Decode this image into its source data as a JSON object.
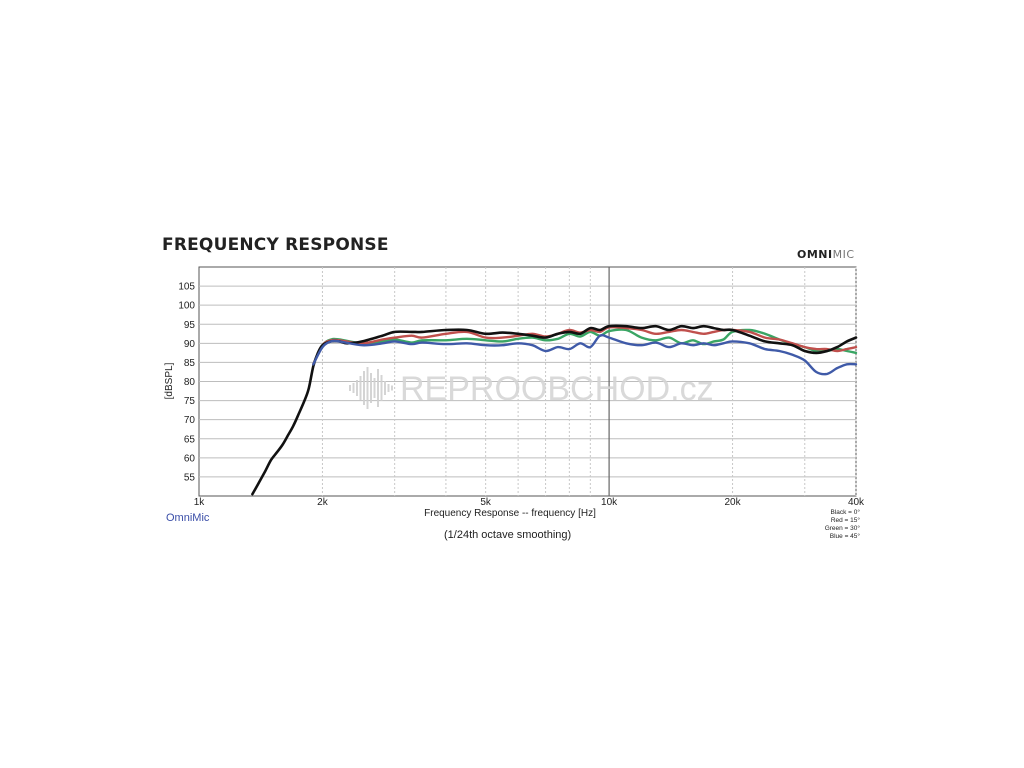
{
  "title": "FREQUENCY RESPONSE",
  "brand": {
    "bold": "OMNI",
    "thin": "MIC"
  },
  "watermark": "REPROOBCHOD.cz",
  "omnimic_label": "OmniMic",
  "subtitle": "(1/24th octave smoothing)",
  "legend": [
    "Black = 0°",
    "Red = 15°",
    "Green = 30°",
    "Blue = 45°"
  ],
  "chart_data": {
    "type": "line",
    "title": "FREQUENCY RESPONSE",
    "xlabel": "Frequency Response -- frequency [Hz]",
    "ylabel": "[dBSPL]",
    "xscale": "log",
    "xlim": [
      1000,
      40000
    ],
    "ylim": [
      50,
      110
    ],
    "x_ticks": [
      {
        "value": 1000,
        "label": "1k"
      },
      {
        "value": 2000,
        "label": "2k"
      },
      {
        "value": 5000,
        "label": "5k"
      },
      {
        "value": 10000,
        "label": "10k"
      },
      {
        "value": 20000,
        "label": "20k"
      },
      {
        "value": 40000,
        "label": "40k"
      }
    ],
    "y_ticks": [
      55,
      60,
      65,
      70,
      75,
      80,
      85,
      90,
      95,
      100,
      105
    ],
    "grid": true,
    "colors": {
      "black": "#111111",
      "red": "#c0504d",
      "green": "#3aa564",
      "blue": "#3f5aa8"
    },
    "series": [
      {
        "key": "green",
        "x": [
          1900,
          2000,
          2100,
          2200,
          2500,
          2800,
          3000,
          3300,
          3500,
          4000,
          4500,
          5000,
          5500,
          6000,
          6500,
          7000,
          7500,
          8000,
          8500,
          9000,
          9500,
          10000,
          11000,
          12000,
          13000,
          14000,
          15000,
          16000,
          17000,
          18000,
          19000,
          20000,
          22000,
          24000,
          26000,
          28000,
          30000,
          32000,
          34000,
          36000,
          38000,
          40000
        ],
        "y": [
          84.5,
          89.5,
          91.0,
          91.0,
          90.0,
          90.5,
          91.0,
          90.2,
          90.8,
          90.8,
          91.2,
          90.8,
          90.5,
          91.2,
          91.5,
          90.8,
          91.2,
          92.5,
          91.8,
          93.0,
          92.0,
          93.2,
          93.5,
          91.5,
          90.8,
          91.5,
          90.0,
          90.8,
          89.8,
          90.5,
          91.0,
          93.0,
          93.5,
          92.5,
          91.0,
          89.8,
          89.0,
          88.0,
          88.0,
          88.5,
          88.0,
          87.5
        ]
      },
      {
        "key": "red",
        "x": [
          1900,
          2000,
          2100,
          2200,
          2500,
          2800,
          3000,
          3300,
          3500,
          4000,
          4500,
          5000,
          5500,
          6000,
          6500,
          7000,
          7500,
          8000,
          8500,
          9000,
          9500,
          10000,
          11000,
          12000,
          13000,
          14000,
          15000,
          16000,
          17000,
          18000,
          19000,
          20000,
          22000,
          24000,
          26000,
          28000,
          30000,
          32000,
          34000,
          36000,
          38000,
          40000
        ],
        "y": [
          84.5,
          89.5,
          90.8,
          90.8,
          90.0,
          91.0,
          91.5,
          92.0,
          91.5,
          92.5,
          93.0,
          91.5,
          91.5,
          92.0,
          92.5,
          91.8,
          92.5,
          93.5,
          92.8,
          93.5,
          93.0,
          94.2,
          94.0,
          93.5,
          92.5,
          93.0,
          93.5,
          93.0,
          92.5,
          93.0,
          93.5,
          93.5,
          93.0,
          91.5,
          91.0,
          90.0,
          89.0,
          88.5,
          88.5,
          88.0,
          88.5,
          89.0
        ]
      },
      {
        "key": "black",
        "x": [
          1350,
          1400,
          1450,
          1500,
          1550,
          1600,
          1650,
          1700,
          1750,
          1800,
          1850,
          1900,
          1950,
          2000,
          2100,
          2200,
          2300,
          2500,
          2800,
          3000,
          3300,
          3500,
          4000,
          4500,
          5000,
          5500,
          6000,
          6500,
          7000,
          7500,
          8000,
          8500,
          9000,
          9500,
          10000,
          11000,
          12000,
          13000,
          14000,
          15000,
          16000,
          17000,
          18000,
          19000,
          20000,
          22000,
          24000,
          26000,
          28000,
          30000,
          32000,
          34000,
          36000,
          38000,
          40000
        ],
        "y": [
          50.5,
          53.5,
          56.5,
          59.5,
          61.5,
          63.5,
          66.0,
          68.5,
          71.5,
          74.5,
          78.0,
          84.0,
          87.5,
          89.5,
          90.5,
          90.5,
          90.0,
          90.5,
          92.0,
          93.0,
          93.0,
          93.0,
          93.5,
          93.5,
          92.5,
          92.8,
          92.5,
          92.0,
          91.5,
          92.5,
          93.0,
          92.5,
          94.0,
          93.5,
          94.5,
          94.5,
          94.0,
          94.5,
          93.5,
          94.5,
          94.0,
          94.5,
          94.0,
          93.5,
          93.5,
          92.0,
          90.5,
          90.0,
          89.5,
          88.0,
          87.5,
          88.0,
          89.0,
          90.5,
          91.5
        ]
      },
      {
        "key": "blue",
        "x": [
          1900,
          2000,
          2100,
          2200,
          2500,
          2800,
          3000,
          3300,
          3500,
          4000,
          4500,
          5000,
          5500,
          6000,
          6500,
          7000,
          7500,
          8000,
          8500,
          9000,
          9500,
          10000,
          11000,
          12000,
          13000,
          14000,
          15000,
          16000,
          17000,
          18000,
          19000,
          20000,
          22000,
          24000,
          26000,
          28000,
          30000,
          32000,
          34000,
          36000,
          38000,
          40000
        ],
        "y": [
          84.5,
          89.0,
          90.5,
          90.5,
          89.5,
          90.0,
          90.5,
          89.8,
          90.2,
          89.8,
          90.0,
          89.5,
          89.5,
          90.0,
          89.5,
          88.0,
          89.0,
          88.5,
          90.0,
          89.0,
          92.0,
          91.5,
          90.0,
          89.5,
          90.2,
          89.0,
          90.0,
          89.5,
          90.0,
          89.5,
          90.0,
          90.5,
          90.0,
          88.5,
          88.0,
          87.0,
          85.5,
          82.5,
          82.0,
          83.5,
          84.5,
          84.5
        ]
      }
    ]
  }
}
